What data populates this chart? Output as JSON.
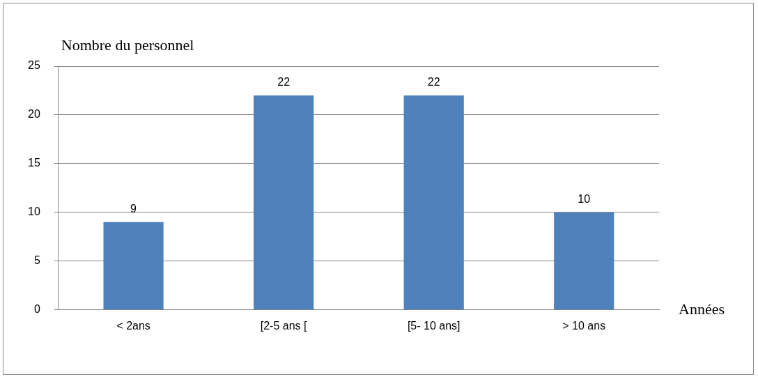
{
  "chart_data": {
    "type": "bar",
    "ylabel": "Nombre du personnel",
    "xlabel": "Années",
    "categories": [
      "< 2ans",
      "[2-5 ans [",
      "[5- 10 ans]",
      "> 10 ans"
    ],
    "values": [
      9,
      22,
      22,
      10
    ],
    "color": "#4f81bd",
    "ylim": [
      0,
      25
    ],
    "yticks": [
      0,
      5,
      10,
      15,
      20,
      25
    ],
    "grid": "y",
    "data_labels": true
  }
}
